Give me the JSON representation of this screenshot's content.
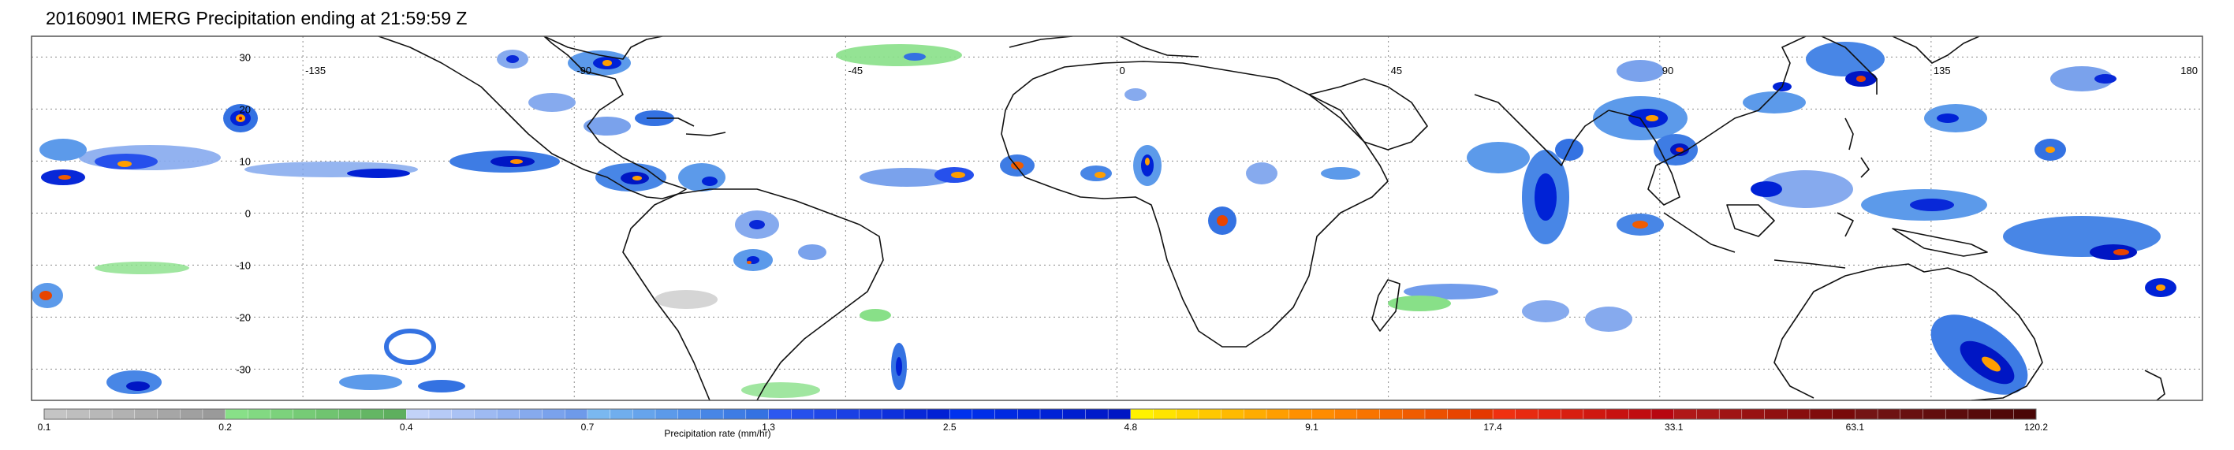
{
  "title": "20160901 IMERG Precipitation ending at 21:59:59 Z",
  "map": {
    "lon_ticks": [
      "-135",
      "-90",
      "-45",
      "0",
      "45",
      "90",
      "135",
      "180"
    ],
    "lat_ticks": [
      "30",
      "20",
      "10",
      "0",
      "-10",
      "-20",
      "-30"
    ],
    "lon_range": [
      -180,
      180
    ],
    "lat_range": [
      -36,
      34
    ],
    "grid": "dotted",
    "coastline_color": "#111111"
  },
  "colorbar": {
    "label": "Precipitation rate (mm/hr)",
    "tick_labels": [
      "0.1",
      "0.2",
      "0.4",
      "0.7",
      "1.3",
      "2.5",
      "4.8",
      "9.1",
      "17.4",
      "33.1",
      "63.1",
      "120.2"
    ],
    "groups": [
      {
        "range": "0.1-0.2",
        "colors": [
          "#c4c4c4",
          "#bebebe",
          "#b8b8b8",
          "#b2b2b2",
          "#acacac",
          "#a6a6a6",
          "#a0a0a0",
          "#9a9a9a"
        ]
      },
      {
        "range": "0.2-0.4",
        "colors": [
          "#88e088",
          "#82d982",
          "#7cd27c",
          "#76cb76",
          "#70c470",
          "#6abd6a",
          "#64b664",
          "#5eaf5e"
        ]
      },
      {
        "range": "0.4-0.7",
        "colors": [
          "#c2d2f8",
          "#b6caf6",
          "#aac2f4",
          "#9ebaf2",
          "#92b2f0",
          "#86aaee",
          "#7aa2ec",
          "#6e9aea"
        ]
      },
      {
        "range": "0.7-1.3",
        "colors": [
          "#7ab8f0",
          "#70aeee",
          "#66a4ec",
          "#5c9aea",
          "#5290e8",
          "#4886e6",
          "#3e7ce4",
          "#3472e2"
        ]
      },
      {
        "range": "1.3-2.5",
        "colors": [
          "#2c58f0",
          "#2650ec",
          "#2048e8",
          "#1a40e4",
          "#1438e0",
          "#0e30dc",
          "#0828d8",
          "#0220d4"
        ]
      },
      {
        "range": "2.5-4.8",
        "colors": [
          "#0032ee",
          "#002ee8",
          "#002ae2",
          "#0026dc",
          "#0022d6",
          "#001ed0",
          "#001aca",
          "#0016c4"
        ]
      },
      {
        "range": "4.8-9.1",
        "colors": [
          "#fff200",
          "#ffe400",
          "#ffd600",
          "#ffc800",
          "#ffba00",
          "#ffac00",
          "#ff9e00",
          "#ff9000"
        ]
      },
      {
        "range": "9.1-17.4",
        "colors": [
          "#ff8c00",
          "#fc8000",
          "#f87400",
          "#f46800",
          "#f05c00",
          "#ec5000",
          "#e84400",
          "#e43800"
        ]
      },
      {
        "range": "17.4-33.1",
        "colors": [
          "#f03010",
          "#e82a10",
          "#e02410",
          "#d81e10",
          "#d01810",
          "#c81210",
          "#c00c10",
          "#b80610"
        ]
      },
      {
        "range": "33.1-63.1",
        "colors": [
          "#b01818",
          "#a81616",
          "#a01414",
          "#981212",
          "#901010",
          "#880e0e",
          "#800c0c",
          "#780a0a"
        ]
      },
      {
        "range": "63.1-120.2",
        "colors": [
          "#741414",
          "#6e1212",
          "#681010",
          "#620e0e",
          "#5c0c0c",
          "#560a0a",
          "#500808",
          "#4a0606"
        ]
      }
    ]
  }
}
